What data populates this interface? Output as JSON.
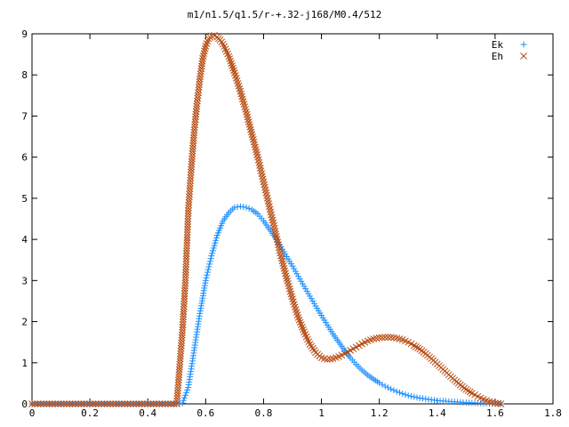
{
  "chart_data": {
    "type": "scatter",
    "title": "m1/n1.5/q1.5/r-+.32-j168/M0.4/512",
    "xlabel": "",
    "ylabel": "",
    "xlim": [
      0,
      1.8
    ],
    "ylim": [
      0,
      9
    ],
    "x_ticks": [
      "0",
      "0.2",
      "0.4",
      "0.6",
      "0.8",
      "1",
      "1.2",
      "1.4",
      "1.6",
      "1.8"
    ],
    "y_ticks": [
      "0",
      "1",
      "2",
      "3",
      "4",
      "5",
      "6",
      "7",
      "8",
      "9"
    ],
    "legend_position": "top-right",
    "grid": false,
    "series": [
      {
        "name": "Ek",
        "marker": "plus",
        "color": "#1e90ff",
        "x": [
          0,
          0.05,
          0.1,
          0.15,
          0.2,
          0.25,
          0.3,
          0.35,
          0.4,
          0.45,
          0.5,
          0.52,
          0.54,
          0.56,
          0.58,
          0.6,
          0.62,
          0.64,
          0.66,
          0.68,
          0.7,
          0.72,
          0.74,
          0.76,
          0.78,
          0.8,
          0.82,
          0.84,
          0.86,
          0.88,
          0.9,
          0.92,
          0.94,
          0.96,
          0.98,
          1.0,
          1.02,
          1.04,
          1.06,
          1.08,
          1.1,
          1.12,
          1.14,
          1.16,
          1.18,
          1.2,
          1.22,
          1.24,
          1.26,
          1.28,
          1.3,
          1.32,
          1.34,
          1.36,
          1.38,
          1.4,
          1.42,
          1.44,
          1.46,
          1.48,
          1.5,
          1.52,
          1.54,
          1.56,
          1.58,
          1.6,
          1.62
        ],
        "y": [
          0,
          0,
          0,
          0,
          0,
          0,
          0,
          0,
          0,
          0,
          0,
          0.02,
          0.4,
          1.3,
          2.2,
          3.0,
          3.6,
          4.1,
          4.45,
          4.65,
          4.78,
          4.8,
          4.78,
          4.72,
          4.62,
          4.45,
          4.25,
          4.05,
          3.82,
          3.58,
          3.35,
          3.1,
          2.86,
          2.62,
          2.38,
          2.15,
          1.92,
          1.7,
          1.5,
          1.3,
          1.12,
          0.96,
          0.82,
          0.7,
          0.6,
          0.51,
          0.43,
          0.36,
          0.3,
          0.25,
          0.2,
          0.17,
          0.14,
          0.12,
          0.1,
          0.08,
          0.07,
          0.06,
          0.05,
          0.04,
          0.03,
          0.025,
          0.02,
          0.015,
          0.01,
          0.005,
          0
        ]
      },
      {
        "name": "Eh",
        "marker": "cross",
        "color": "#b5490f",
        "x": [
          0,
          0.05,
          0.1,
          0.15,
          0.2,
          0.25,
          0.3,
          0.35,
          0.4,
          0.45,
          0.5,
          0.52,
          0.53,
          0.54,
          0.55,
          0.56,
          0.57,
          0.58,
          0.59,
          0.6,
          0.61,
          0.62,
          0.63,
          0.64,
          0.65,
          0.66,
          0.68,
          0.7,
          0.72,
          0.74,
          0.76,
          0.78,
          0.8,
          0.82,
          0.84,
          0.86,
          0.88,
          0.9,
          0.92,
          0.94,
          0.96,
          0.98,
          1.0,
          1.02,
          1.04,
          1.06,
          1.08,
          1.1,
          1.12,
          1.14,
          1.16,
          1.18,
          1.2,
          1.22,
          1.24,
          1.26,
          1.28,
          1.3,
          1.32,
          1.34,
          1.36,
          1.38,
          1.4,
          1.42,
          1.44,
          1.46,
          1.48,
          1.5,
          1.52,
          1.54,
          1.56,
          1.58,
          1.6,
          1.62
        ],
        "y": [
          0,
          0,
          0,
          0,
          0,
          0,
          0,
          0,
          0,
          0,
          0,
          1.8,
          3.0,
          4.7,
          5.7,
          6.6,
          7.3,
          7.9,
          8.4,
          8.7,
          8.88,
          8.95,
          8.96,
          8.92,
          8.85,
          8.75,
          8.45,
          8.05,
          7.6,
          7.1,
          6.55,
          6.0,
          5.4,
          4.8,
          4.2,
          3.6,
          3.05,
          2.55,
          2.1,
          1.75,
          1.45,
          1.25,
          1.12,
          1.08,
          1.1,
          1.15,
          1.22,
          1.3,
          1.38,
          1.46,
          1.53,
          1.58,
          1.61,
          1.62,
          1.62,
          1.6,
          1.56,
          1.5,
          1.42,
          1.33,
          1.22,
          1.1,
          0.97,
          0.84,
          0.71,
          0.58,
          0.46,
          0.35,
          0.26,
          0.18,
          0.11,
          0.06,
          0.02,
          0
        ]
      }
    ]
  }
}
